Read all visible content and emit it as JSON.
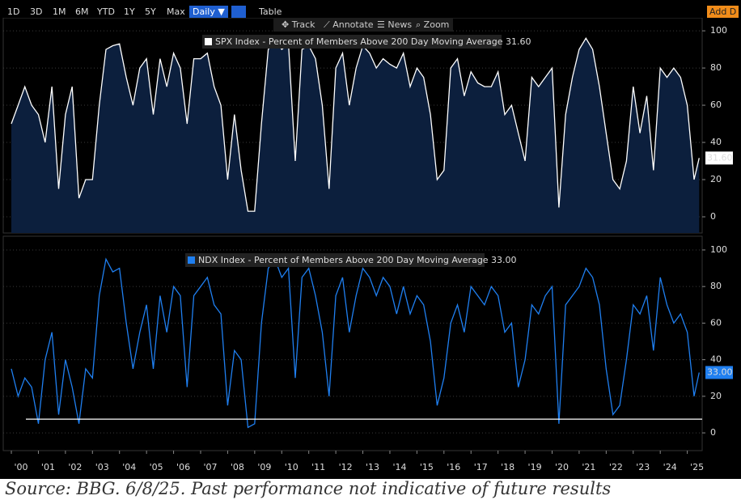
{
  "toolbar": {
    "ranges": [
      "1D",
      "3D",
      "1M",
      "6M",
      "YTD",
      "1Y",
      "5Y",
      "Max"
    ],
    "interval": "Daily ▼",
    "table": "Table",
    "tools": [
      "Track",
      "Annotate",
      "News",
      "Zoom"
    ],
    "add": "Add D"
  },
  "chart_data": [
    {
      "type": "area",
      "fill": "#0c1f3d",
      "series": [
        {
          "name": "SPX Index - Percent of Members Above 200 Day Moving Average 31.60",
          "color": "#ffffff",
          "values": [
            50,
            60,
            70,
            60,
            55,
            40,
            70,
            15,
            55,
            70,
            10,
            20,
            20,
            60,
            90,
            92,
            93,
            75,
            60,
            80,
            85,
            55,
            85,
            70,
            88,
            80,
            50,
            85,
            85,
            88,
            70,
            60,
            20,
            55,
            25,
            3,
            3,
            50,
            90,
            95,
            90,
            93,
            30,
            90,
            92,
            85,
            60,
            15,
            80,
            88,
            60,
            80,
            92,
            88,
            80,
            85,
            82,
            80,
            88,
            70,
            80,
            75,
            55,
            20,
            25,
            80,
            85,
            65,
            78,
            72,
            70,
            70,
            78,
            55,
            60,
            45,
            30,
            75,
            70,
            75,
            80,
            5,
            55,
            75,
            90,
            96,
            90,
            70,
            45,
            20,
            15,
            30,
            70,
            45,
            65,
            25,
            80,
            75,
            80,
            75,
            60,
            20,
            31.6
          ]
        }
      ],
      "last_label": "31.60",
      "x": [
        2000,
        2000.25,
        2000.5,
        2000.75,
        2001,
        2001.25,
        2001.5,
        2001.75,
        2002,
        2002.25,
        2002.5,
        2002.75,
        2003,
        2003.25,
        2003.5,
        2003.75,
        2004,
        2004.25,
        2004.5,
        2004.75,
        2005,
        2005.25,
        2005.5,
        2005.75,
        2006,
        2006.25,
        2006.5,
        2006.75,
        2007,
        2007.25,
        2007.5,
        2007.75,
        2008,
        2008.25,
        2008.5,
        2008.75,
        2009,
        2009.25,
        2009.5,
        2009.75,
        2010,
        2010.25,
        2010.5,
        2010.75,
        2011,
        2011.25,
        2011.5,
        2011.75,
        2012,
        2012.25,
        2012.5,
        2012.75,
        2013,
        2013.25,
        2013.5,
        2013.75,
        2014,
        2014.25,
        2014.5,
        2014.75,
        2015,
        2015.25,
        2015.5,
        2015.75,
        2016,
        2016.25,
        2016.5,
        2016.75,
        2017,
        2017.25,
        2017.5,
        2017.75,
        2018,
        2018.25,
        2018.5,
        2018.75,
        2019,
        2019.25,
        2019.5,
        2019.75,
        2020,
        2020.25,
        2020.5,
        2020.75,
        2021,
        2021.25,
        2021.5,
        2021.75,
        2022,
        2022.25,
        2022.5,
        2022.75,
        2023,
        2023.25,
        2023.5,
        2023.75,
        2024,
        2024.25,
        2024.5,
        2024.75,
        2025,
        2025.25,
        2025.44
      ],
      "xlim": [
        1999.7,
        2025.55
      ],
      "ylim": [
        -8.7,
        107
      ],
      "yticks": [
        0,
        20,
        40,
        60,
        80,
        100
      ],
      "grid": true
    },
    {
      "type": "line",
      "series": [
        {
          "name": "NDX Index - Percent of Members Above 200 Day Moving Average 33.00",
          "color": "#1f7ff0",
          "values": [
            35,
            20,
            30,
            25,
            5,
            40,
            55,
            10,
            40,
            25,
            5,
            35,
            30,
            75,
            95,
            88,
            90,
            60,
            35,
            55,
            70,
            35,
            75,
            55,
            80,
            75,
            25,
            75,
            80,
            85,
            70,
            65,
            15,
            45,
            40,
            3,
            5,
            60,
            90,
            95,
            85,
            90,
            30,
            85,
            90,
            75,
            55,
            20,
            75,
            85,
            55,
            75,
            90,
            85,
            75,
            85,
            80,
            65,
            80,
            65,
            75,
            70,
            50,
            15,
            30,
            60,
            70,
            55,
            80,
            75,
            70,
            80,
            75,
            55,
            60,
            25,
            40,
            70,
            65,
            75,
            80,
            5,
            70,
            75,
            80,
            90,
            85,
            70,
            35,
            10,
            15,
            40,
            70,
            65,
            75,
            45,
            85,
            70,
            60,
            65,
            55,
            20,
            33
          ]
        }
      ],
      "last_label": "33.00",
      "hline": 7.5,
      "x": [
        2000,
        2000.25,
        2000.5,
        2000.75,
        2001,
        2001.25,
        2001.5,
        2001.75,
        2002,
        2002.25,
        2002.5,
        2002.75,
        2003,
        2003.25,
        2003.5,
        2003.75,
        2004,
        2004.25,
        2004.5,
        2004.75,
        2005,
        2005.25,
        2005.5,
        2005.75,
        2006,
        2006.25,
        2006.5,
        2006.75,
        2007,
        2007.25,
        2007.5,
        2007.75,
        2008,
        2008.25,
        2008.5,
        2008.75,
        2009,
        2009.25,
        2009.5,
        2009.75,
        2010,
        2010.25,
        2010.5,
        2010.75,
        2011,
        2011.25,
        2011.5,
        2011.75,
        2012,
        2012.25,
        2012.5,
        2012.75,
        2013,
        2013.25,
        2013.5,
        2013.75,
        2014,
        2014.25,
        2014.5,
        2014.75,
        2015,
        2015.25,
        2015.5,
        2015.75,
        2016,
        2016.25,
        2016.5,
        2016.75,
        2017,
        2017.25,
        2017.5,
        2017.75,
        2018,
        2018.25,
        2018.5,
        2018.75,
        2019,
        2019.25,
        2019.5,
        2019.75,
        2020,
        2020.25,
        2020.5,
        2020.75,
        2021,
        2021.25,
        2021.5,
        2021.75,
        2022,
        2022.25,
        2022.5,
        2022.75,
        2023,
        2023.25,
        2023.5,
        2023.75,
        2024,
        2024.25,
        2024.5,
        2024.75,
        2025,
        2025.25,
        2025.44
      ],
      "xlim": [
        1999.7,
        2025.55
      ],
      "ylim": [
        -9.7,
        107.5
      ],
      "yticks": [
        0,
        20,
        40,
        60,
        80,
        100
      ],
      "grid": true,
      "xticks": [
        {
          "value": 2000,
          "label": "'00"
        },
        {
          "value": 2001,
          "label": "'01"
        },
        {
          "value": 2002,
          "label": "'02"
        },
        {
          "value": 2003,
          "label": "'03"
        },
        {
          "value": 2004,
          "label": "'04"
        },
        {
          "value": 2005,
          "label": "'05"
        },
        {
          "value": 2006,
          "label": "'06"
        },
        {
          "value": 2007,
          "label": "'07"
        },
        {
          "value": 2008,
          "label": "'08"
        },
        {
          "value": 2009,
          "label": "'09"
        },
        {
          "value": 2010,
          "label": "'10"
        },
        {
          "value": 2011,
          "label": "'11"
        },
        {
          "value": 2012,
          "label": "'12"
        },
        {
          "value": 2013,
          "label": "'13"
        },
        {
          "value": 2014,
          "label": "'14"
        },
        {
          "value": 2015,
          "label": "'15"
        },
        {
          "value": 2016,
          "label": "'16"
        },
        {
          "value": 2017,
          "label": "'17"
        },
        {
          "value": 2018,
          "label": "'18"
        },
        {
          "value": 2019,
          "label": "'19"
        },
        {
          "value": 2020,
          "label": "'20"
        },
        {
          "value": 2021,
          "label": "'21"
        },
        {
          "value": 2022,
          "label": "'22"
        },
        {
          "value": 2023,
          "label": "'23"
        },
        {
          "value": 2024,
          "label": "'24"
        },
        {
          "value": 2025,
          "label": "'25"
        }
      ]
    }
  ],
  "source": "Source: BBG. 6/8/25. Past performance not indicative of future results"
}
